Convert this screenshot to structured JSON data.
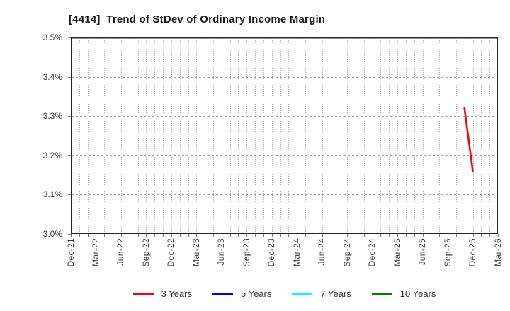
{
  "chart_data": {
    "type": "line",
    "title": "[4414]  Trend of StDev of Ordinary Income Margin",
    "xlabel": "",
    "ylabel": "",
    "ylim": [
      3.0,
      3.5
    ],
    "y_tick_step_pct": 0.1,
    "y_ticks": [
      "3.0%",
      "3.1%",
      "3.2%",
      "3.3%",
      "3.4%",
      "3.5%"
    ],
    "x_tick_labels": [
      "Dec-21",
      "Mar-22",
      "Jun-22",
      "Sep-22",
      "Dec-22",
      "Mar-23",
      "Jun-23",
      "Sep-23",
      "Dec-23",
      "Mar-24",
      "Jun-24",
      "Sep-24",
      "Dec-24",
      "Mar-25",
      "Jun-25",
      "Sep-25",
      "Dec-25",
      "Mar-26"
    ],
    "x_tick_month_step": 3,
    "months_total": 51,
    "grid": true,
    "gridline_style": "dotted",
    "legend_position": "bottom",
    "background_color": "#ffffff",
    "series": [
      {
        "name": "3 Years",
        "color": "#ff0000",
        "points": [
          {
            "month": "Nov-25",
            "month_index": 47,
            "value": 3.32
          },
          {
            "month": "Dec-25",
            "month_index": 48,
            "value": 3.16
          }
        ]
      },
      {
        "name": "5 Years",
        "color": "#0000ff",
        "points": []
      },
      {
        "name": "7 Years",
        "color": "#00ffff",
        "points": []
      },
      {
        "name": "10 Years",
        "color": "#008000",
        "points": []
      }
    ]
  }
}
